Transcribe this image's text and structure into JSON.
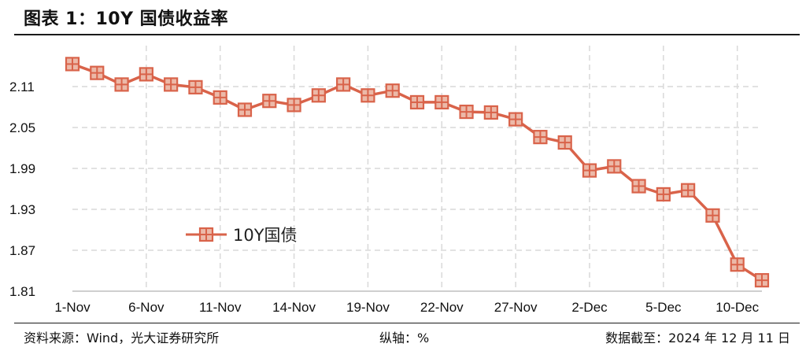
{
  "header": {
    "title": "图表 1：10Y 国债收益率"
  },
  "footer": {
    "source": "资料来源：Wind，光大证券研究所",
    "axis_note": "纵轴：%",
    "date_note": "数据截至：2024 年 12 月 11 日"
  },
  "colors": {
    "line": "#d9634a",
    "marker_fill": "#ecb9a8",
    "grid": "#d9d9d9"
  },
  "chart_data": {
    "type": "line",
    "title": "",
    "xlabel": "",
    "ylabel": "",
    "ylim": [
      1.81,
      2.17
    ],
    "yticks": [
      2.11,
      2.05,
      1.99,
      1.93,
      1.87,
      1.81
    ],
    "x": [
      "1-Nov",
      "4-Nov",
      "5-Nov",
      "6-Nov",
      "7-Nov",
      "8-Nov",
      "11-Nov",
      "12-Nov",
      "13-Nov",
      "14-Nov",
      "15-Nov",
      "18-Nov",
      "19-Nov",
      "20-Nov",
      "21-Nov",
      "22-Nov",
      "25-Nov",
      "26-Nov",
      "27-Nov",
      "28-Nov",
      "29-Nov",
      "2-Dec",
      "3-Dec",
      "4-Dec",
      "5-Dec",
      "6-Dec",
      "9-Dec",
      "10-Dec",
      "11-Dec"
    ],
    "xtick_labels": [
      "1-Nov",
      "6-Nov",
      "11-Nov",
      "14-Nov",
      "19-Nov",
      "22-Nov",
      "27-Nov",
      "2-Dec",
      "5-Dec",
      "10-Dec"
    ],
    "xtick_indices": [
      0,
      3,
      6,
      9,
      12,
      15,
      18,
      21,
      24,
      27
    ],
    "legend": {
      "position": "lower-left"
    },
    "series": [
      {
        "name": "10Y国债",
        "values": [
          2.143,
          2.13,
          2.113,
          2.128,
          2.113,
          2.109,
          2.094,
          2.076,
          2.089,
          2.083,
          2.097,
          2.113,
          2.097,
          2.104,
          2.087,
          2.087,
          2.073,
          2.072,
          2.062,
          2.036,
          2.028,
          1.987,
          1.993,
          1.964,
          1.952,
          1.958,
          1.921,
          1.849,
          1.826
        ]
      }
    ]
  }
}
